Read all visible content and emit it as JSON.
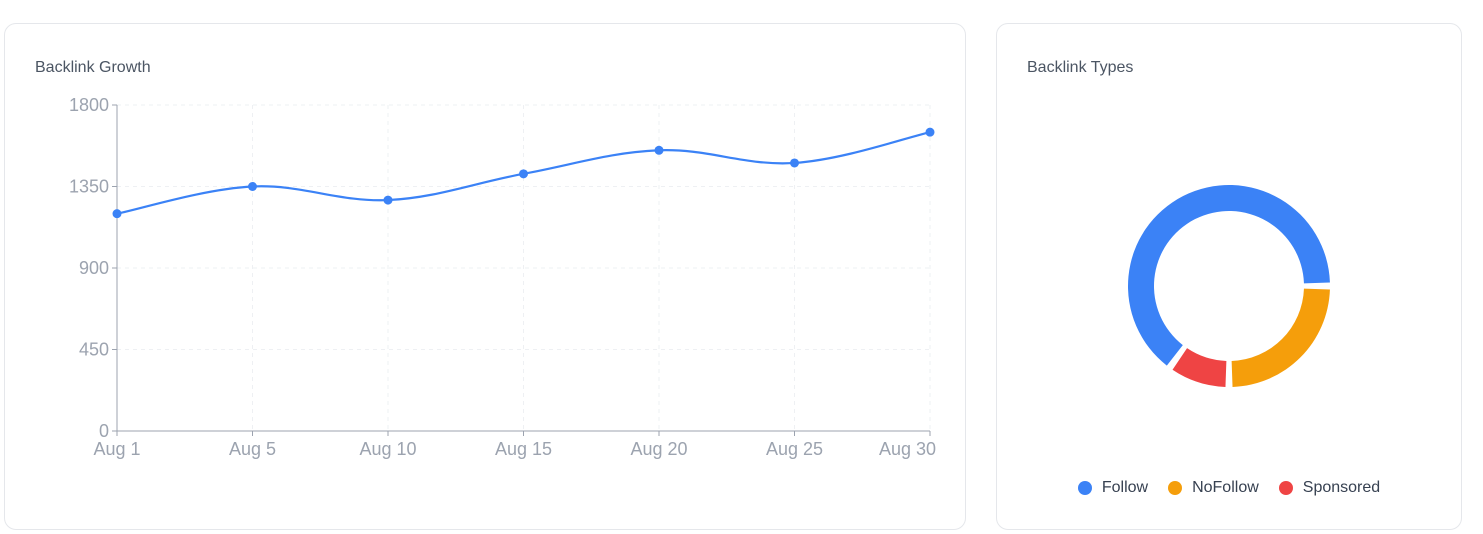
{
  "cards": {
    "growth_title": "Backlink Growth",
    "types_title": "Backlink Types"
  },
  "chart_data": [
    {
      "type": "line",
      "title": "Backlink Growth",
      "xlabel": "",
      "ylabel": "",
      "x": [
        "Aug 1",
        "Aug 5",
        "Aug 10",
        "Aug 15",
        "Aug 20",
        "Aug 25",
        "Aug 30"
      ],
      "series": [
        {
          "values": [
            1200,
            1350,
            1275,
            1420,
            1550,
            1480,
            1650
          ],
          "color": "#3b82f6"
        }
      ],
      "yticks": [
        "0",
        "450",
        "900",
        "1350",
        "1800"
      ],
      "ylim": [
        0,
        1800
      ],
      "grid": true
    },
    {
      "type": "pie",
      "title": "Backlink Types",
      "labels": [
        "Follow",
        "NoFollow",
        "Sponsored"
      ],
      "values": [
        65,
        25,
        10
      ],
      "colors": [
        "#3b82f6",
        "#f59e0b",
        "#ef4444"
      ],
      "legend": "bottom"
    }
  ]
}
